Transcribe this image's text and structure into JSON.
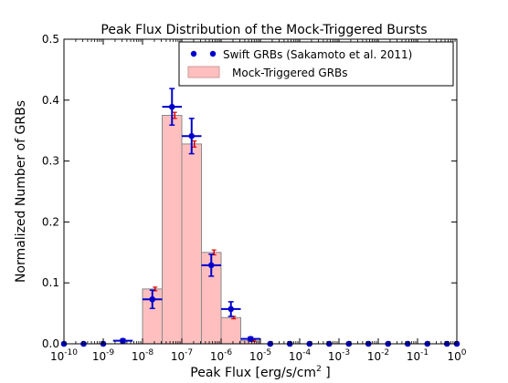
{
  "chart_data": {
    "type": "bar",
    "title": "Peak Flux Distribution of the Mock-Triggered Bursts",
    "xlabel": "Peak Flux [erg/s/cm",
    "xlabel_sup": "2",
    "xlabel_end": " ]",
    "ylabel": "Normalized Number of GRBs",
    "xscale": "log",
    "xlim_exp": [
      -10,
      0
    ],
    "ylim": [
      0,
      0.5
    ],
    "x_ticks": [
      {
        "base": "10",
        "exp": "-10"
      },
      {
        "base": "10",
        "exp": "-9"
      },
      {
        "base": "10",
        "exp": "-8"
      },
      {
        "base": "10",
        "exp": "-7"
      },
      {
        "base": "10",
        "exp": "-6"
      },
      {
        "base": "10",
        "exp": "-5"
      },
      {
        "base": "10",
        "exp": "-4"
      },
      {
        "base": "10",
        "exp": "-3"
      },
      {
        "base": "10",
        "exp": "-2"
      },
      {
        "base": "10",
        "exp": "-1"
      },
      {
        "base": "10",
        "exp": "0"
      }
    ],
    "y_ticks": [
      "0.0",
      "0.1",
      "0.2",
      "0.3",
      "0.4",
      "0.5"
    ],
    "legend": {
      "position": "top-right",
      "entries": [
        "Swift GRBs (Sakamoto et al. 2011)",
        "Mock-Triggered GRBs"
      ]
    },
    "colors": {
      "bar_fill": "#ffbfbf",
      "bar_edge": "#8a8a8a",
      "bar_err": "#dd0000",
      "points": "#0000cc"
    },
    "series": [
      {
        "name": "Mock-Triggered GRBs",
        "kind": "histogram",
        "bins_log10": [
          [
            -8,
            -7.5,
            0.09,
            0.003
          ],
          [
            -7.5,
            -7,
            0.375,
            0.005
          ],
          [
            -7,
            -6.5,
            0.328,
            0.005
          ],
          [
            -6.5,
            -6,
            0.15,
            0.004
          ],
          [
            -6,
            -5.5,
            0.043,
            0.002
          ],
          [
            -5.5,
            -5,
            0.005,
            0.001
          ]
        ]
      },
      {
        "name": "Swift GRBs (Sakamoto et al. 2011)",
        "kind": "points",
        "points_log10": [
          [
            -10,
            0.0,
            0.0
          ],
          [
            -9.5,
            0.0,
            0.0
          ],
          [
            -9,
            0.0,
            0.0
          ],
          [
            -8.5,
            0.005,
            0.003
          ],
          [
            -7.75,
            0.073,
            0.015
          ],
          [
            -7.25,
            0.389,
            0.03
          ],
          [
            -6.75,
            0.341,
            0.029
          ],
          [
            -6.25,
            0.129,
            0.018
          ],
          [
            -5.75,
            0.057,
            0.012
          ],
          [
            -5.25,
            0.008,
            0.003
          ],
          [
            -4.75,
            0.0,
            0.0
          ],
          [
            -4.25,
            0.0,
            0.0
          ],
          [
            -3.75,
            0.0,
            0.0
          ],
          [
            -3.25,
            0.0,
            0.0
          ],
          [
            -2.75,
            0.0,
            0.0
          ],
          [
            -2.25,
            0.0,
            0.0
          ],
          [
            -1.75,
            0.0,
            0.0
          ],
          [
            -1.25,
            0.0,
            0.0
          ],
          [
            -0.75,
            0.0,
            0.0
          ],
          [
            -0.25,
            0.0,
            0.0
          ],
          [
            0,
            0.0,
            0.0
          ]
        ]
      }
    ]
  }
}
